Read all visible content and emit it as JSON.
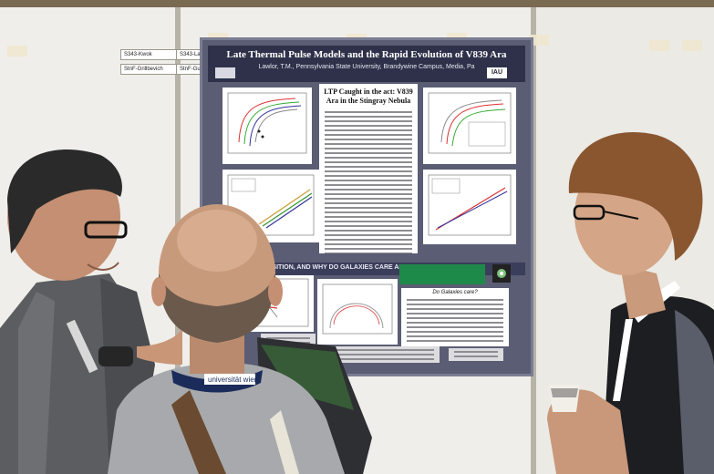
{
  "nameplates": [
    {
      "text": "S343-Kwok"
    },
    {
      "text": "S343-Lawlor"
    },
    {
      "text": "StnF-Grillbevich"
    },
    {
      "text": "StnF-Guhe"
    }
  ],
  "poster": {
    "title": "Late Thermal Pulse Models and the Rapid Evolution of V839 Ara",
    "authors": "Lawlor, T.M., Pennsylvania State University, Brandywine Campus, Media, Pa",
    "logo_right": "IAU",
    "center_title": "LTP Caught in the act: V839 Ara in the Stingray Nebula",
    "banner": "…OSITION, AND WHY DO GALAXIES CARE ABOUT LTP OBJECTS?",
    "subpanel_title": "Do Galaxies care?"
  },
  "lanyard_text": "universität wien",
  "colors": {
    "poster_bg": "#5a5d73",
    "poster_header": "#2e3149",
    "green_table": "#1e8a4a",
    "wall": "#e7e4dc"
  }
}
